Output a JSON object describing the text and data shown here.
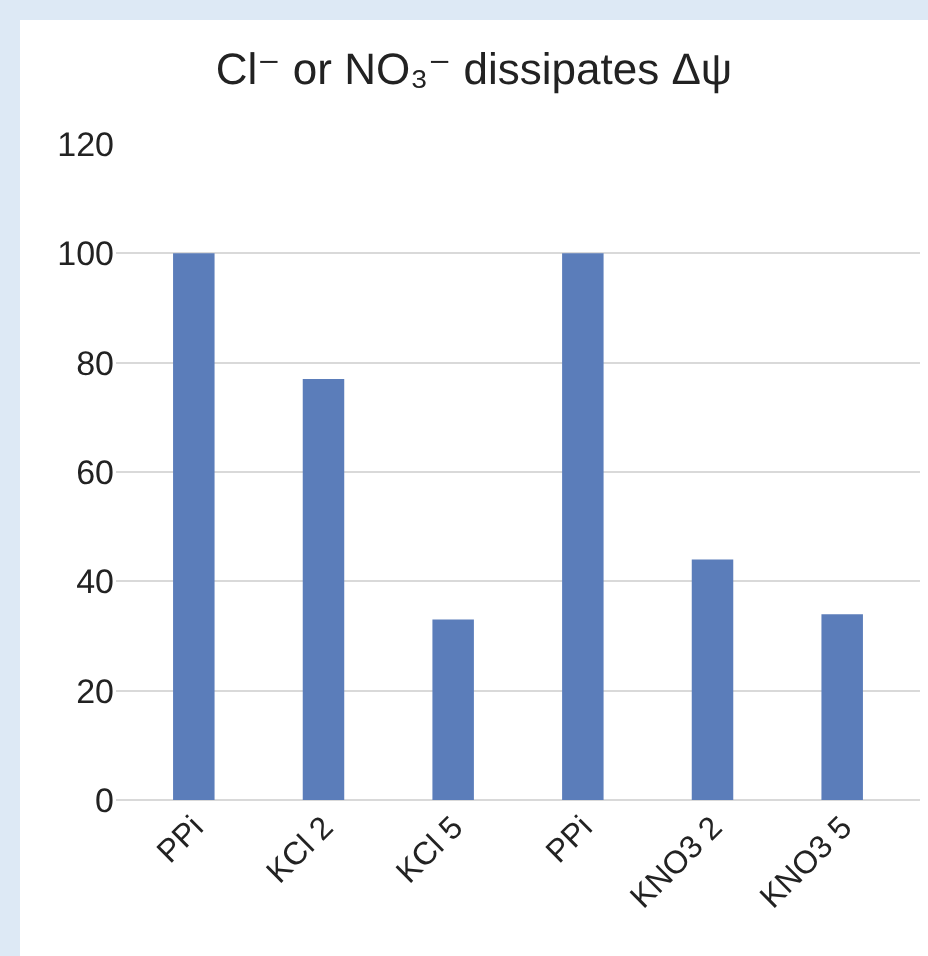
{
  "chart_data": {
    "type": "bar",
    "title": "Cl⁻ or NO₃⁻ dissipates Δψ",
    "categories": [
      "PPi",
      "KCl 2",
      "KCl 5",
      "PPi",
      "KNO3 2",
      "KNO3 5"
    ],
    "values": [
      100,
      77,
      33,
      100,
      44,
      34
    ],
    "color": "#5b7dba",
    "ylim": [
      0,
      120
    ],
    "yticks": [
      0,
      20,
      40,
      60,
      80,
      100,
      120
    ],
    "grid": "y"
  }
}
